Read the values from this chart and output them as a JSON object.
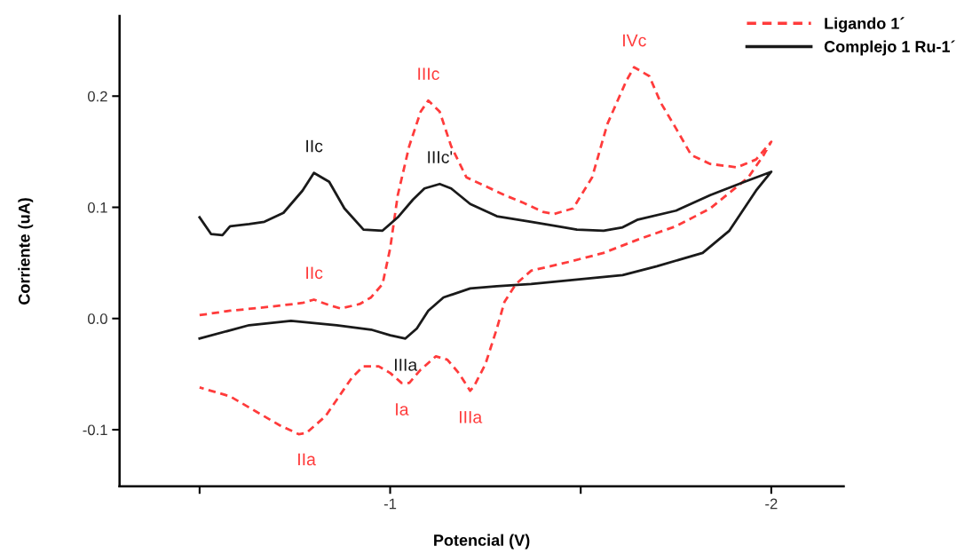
{
  "chart_data": {
    "type": "line",
    "xlabel": "Potencial (V)",
    "ylabel": "Corriente (uA)",
    "xlim": [
      -0.29,
      -2.19
    ],
    "ylim": [
      -0.151,
      0.272
    ],
    "xticks": [
      {
        "value": -0.5,
        "label": null
      },
      -1,
      {
        "value": -1.5,
        "label": null
      },
      -2
    ],
    "yticks": [
      {
        "value": -0.1,
        "label": "-0.1"
      },
      {
        "value": 0.0,
        "label": "0.0"
      },
      {
        "value": 0.1,
        "label": "0.1"
      },
      {
        "value": 0.2,
        "label": "0.2"
      }
    ],
    "grid": false,
    "legend": "top right",
    "marker": "none",
    "series": [
      {
        "name": "Ligando 1´",
        "color": "#ff3b3b",
        "line_style": "dashed",
        "x": [
          -0.5,
          -0.58,
          -0.67,
          -0.77,
          -0.8,
          -0.84,
          -0.87,
          -0.92,
          -0.95,
          -0.98,
          -1.0,
          -1.02,
          -1.05,
          -1.08,
          -1.1,
          -1.13,
          -1.16,
          -1.2,
          -1.25,
          -1.3,
          -1.35,
          -1.4,
          -1.43,
          -1.48,
          -1.53,
          -1.57,
          -1.62,
          -1.64,
          -1.68,
          -1.71,
          -1.75,
          -1.79,
          -1.84,
          -1.91,
          -1.96,
          -2.0,
          -1.98,
          -1.94,
          -1.84,
          -1.75,
          -1.65,
          -1.56,
          -1.47,
          -1.37,
          -1.33,
          -1.3,
          -1.28,
          -1.25,
          -1.22,
          -1.21,
          -1.18,
          -1.15,
          -1.12,
          -1.08,
          -1.05,
          -1.03,
          -1.0,
          -0.97,
          -0.93,
          -0.9,
          -0.86,
          -0.83,
          -0.78,
          -0.76,
          -0.71,
          -0.65,
          -0.58,
          -0.5
        ],
        "values": [
          0.003,
          0.007,
          0.01,
          0.014,
          0.017,
          0.012,
          0.009,
          0.013,
          0.019,
          0.031,
          0.063,
          0.111,
          0.155,
          0.186,
          0.196,
          0.186,
          0.155,
          0.127,
          0.119,
          0.111,
          0.104,
          0.096,
          0.094,
          0.099,
          0.127,
          0.175,
          0.214,
          0.226,
          0.218,
          0.194,
          0.171,
          0.147,
          0.139,
          0.136,
          0.143,
          0.159,
          0.147,
          0.127,
          0.099,
          0.083,
          0.071,
          0.059,
          0.051,
          0.043,
          0.031,
          0.015,
          -0.009,
          -0.041,
          -0.061,
          -0.065,
          -0.049,
          -0.037,
          -0.034,
          -0.046,
          -0.058,
          -0.058,
          -0.049,
          -0.043,
          -0.043,
          -0.053,
          -0.073,
          -0.088,
          -0.103,
          -0.104,
          -0.096,
          -0.084,
          -0.07,
          -0.062
        ]
      },
      {
        "name": "Complejo 1 Ru-1´",
        "color": "#1a1a1a",
        "line_style": "solid",
        "x": [
          -0.5,
          -0.53,
          -0.56,
          -0.58,
          -0.63,
          -0.67,
          -0.72,
          -0.77,
          -0.8,
          -0.84,
          -0.88,
          -0.93,
          -0.98,
          -1.02,
          -1.06,
          -1.09,
          -1.13,
          -1.16,
          -1.21,
          -1.28,
          -1.37,
          -1.49,
          -1.56,
          -1.61,
          -1.65,
          -1.75,
          -1.84,
          -1.93,
          -2.0,
          -1.96,
          -1.89,
          -1.82,
          -1.7,
          -1.61,
          -1.49,
          -1.37,
          -1.28,
          -1.21,
          -1.14,
          -1.1,
          -1.07,
          -1.04,
          -1.0,
          -0.95,
          -0.86,
          -0.74,
          -0.63,
          -0.5
        ],
        "values": [
          0.091,
          0.076,
          0.075,
          0.083,
          0.085,
          0.087,
          0.095,
          0.115,
          0.131,
          0.123,
          0.099,
          0.08,
          0.079,
          0.091,
          0.107,
          0.117,
          0.121,
          0.117,
          0.103,
          0.092,
          0.087,
          0.08,
          0.079,
          0.082,
          0.089,
          0.097,
          0.111,
          0.123,
          0.132,
          0.115,
          0.079,
          0.059,
          0.047,
          0.039,
          0.035,
          0.031,
          0.029,
          0.027,
          0.019,
          0.007,
          -0.009,
          -0.018,
          -0.015,
          -0.01,
          -0.006,
          -0.002,
          -0.006,
          -0.018
        ]
      }
    ],
    "annotations": [
      {
        "text": "IIc",
        "x": -0.8,
        "y": 0.131
      },
      {
        "text": "IIIc'",
        "x": -1.13,
        "y": 0.121
      },
      {
        "text": "IIIa",
        "x": -1.04,
        "y": -0.018
      },
      {
        "text": "IIc",
        "x": -0.8,
        "y": 0.017
      },
      {
        "text": "IIIc",
        "x": -1.1,
        "y": 0.196
      },
      {
        "text": "IVc",
        "x": -1.64,
        "y": 0.226
      },
      {
        "text": "IIa",
        "x": -0.78,
        "y": -0.103
      },
      {
        "text": "Ia",
        "x": -1.03,
        "y": -0.058
      },
      {
        "text": "IIIa",
        "x": -1.21,
        "y": -0.065
      }
    ]
  }
}
